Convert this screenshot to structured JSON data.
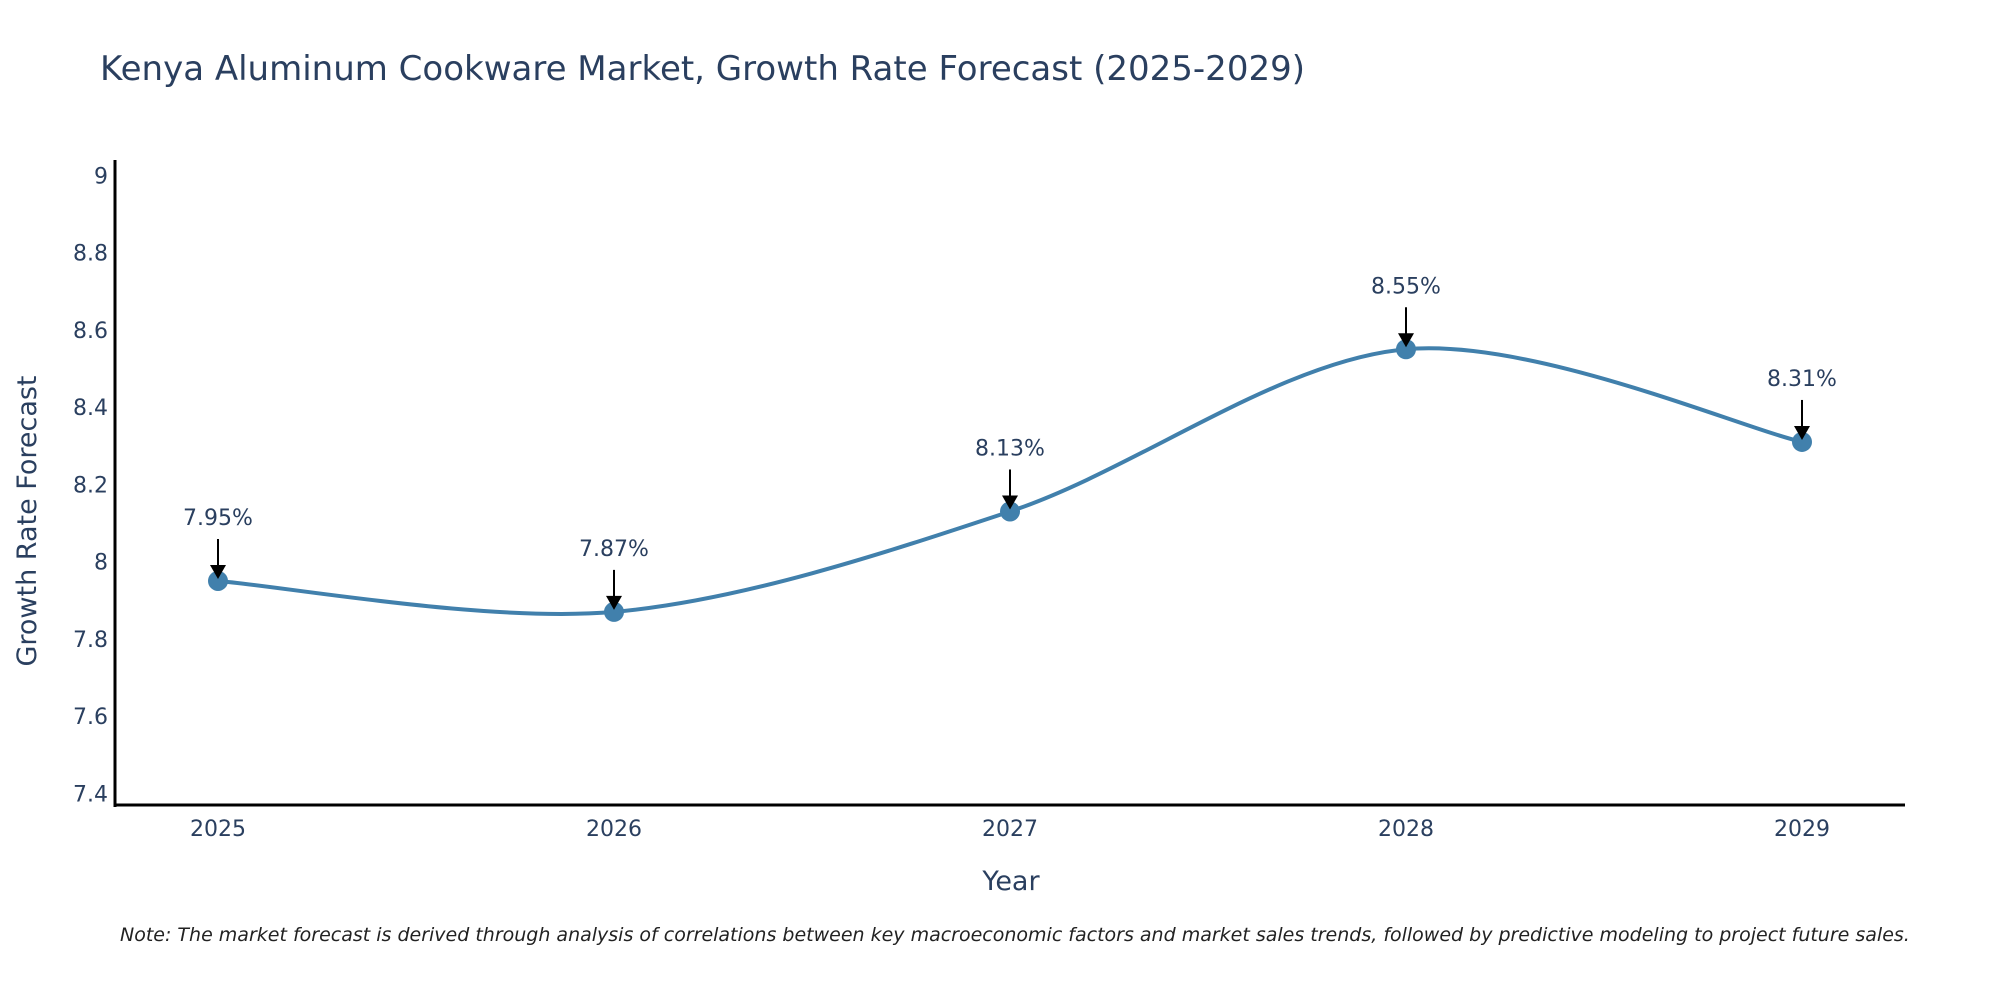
{
  "chart_data": {
    "type": "line",
    "title": "Kenya Aluminum Cookware Market, Growth Rate Forecast (2025-2029)",
    "xlabel": "Year",
    "ylabel": "Growth Rate Forecast",
    "categories": [
      "2025",
      "2026",
      "2027",
      "2028",
      "2029"
    ],
    "series": [
      {
        "name": "Growth Rate Forecast",
        "values": [
          7.95,
          7.87,
          8.13,
          8.55,
          8.31
        ],
        "color": "#4180ac"
      }
    ],
    "data_labels": [
      "7.95%",
      "7.87%",
      "8.13%",
      "8.55%",
      "8.31%"
    ],
    "ylim": [
      7.37,
      9.04
    ],
    "yticks": [
      7.4,
      7.6,
      7.8,
      8,
      8.2,
      8.4,
      8.6,
      8.8,
      9
    ],
    "ytick_labels": [
      "7.4",
      "7.6",
      "7.8",
      "8",
      "8.2",
      "8.4",
      "8.6",
      "8.8",
      "9"
    ],
    "grid": false,
    "legend": "none",
    "note": "Note: The market forecast is derived through analysis of correlations between key macroeconomic factors and market sales trends, followed by predictive modeling to project future sales."
  }
}
